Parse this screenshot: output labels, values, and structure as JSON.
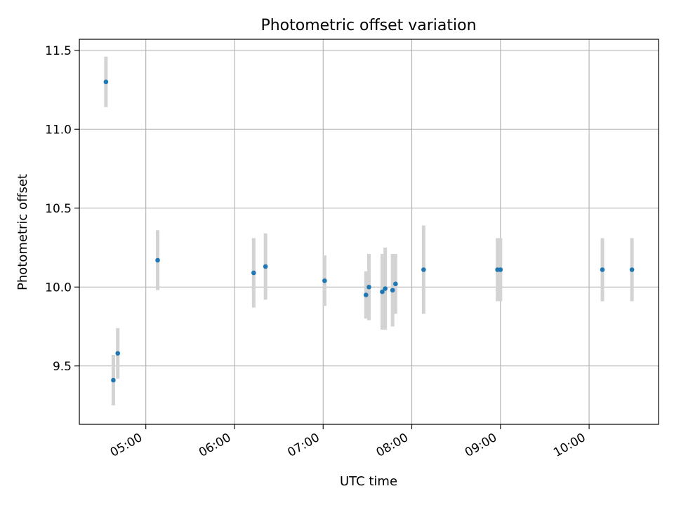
{
  "chart_data": {
    "type": "scatter",
    "title": "Photometric offset variation",
    "xlabel": "UTC time",
    "ylabel": "Photometric offset",
    "x_unit": "time of day (HH:MM, UTC)",
    "xlim": [
      "04:15",
      "10:47"
    ],
    "ylim": [
      9.13,
      11.57
    ],
    "x_ticks": [
      "05:00",
      "06:00",
      "07:00",
      "08:00",
      "09:00",
      "10:00"
    ],
    "y_ticks": [
      9.5,
      10.0,
      10.5,
      11.0,
      11.5
    ],
    "y_tick_labels": [
      "9.5",
      "10.0",
      "10.5",
      "11.0",
      "11.5"
    ],
    "grid": true,
    "legend": "none",
    "point_color": "#1f77b4",
    "errorbar_color": "#d3d3d3",
    "points": [
      {
        "x": "04:33",
        "y": 11.3,
        "err": 0.16
      },
      {
        "x": "04:38",
        "y": 9.41,
        "err": 0.16
      },
      {
        "x": "04:41",
        "y": 9.58,
        "err": 0.16
      },
      {
        "x": "05:08",
        "y": 10.17,
        "err": 0.19
      },
      {
        "x": "06:13",
        "y": 10.09,
        "err": 0.22
      },
      {
        "x": "06:21",
        "y": 10.13,
        "err": 0.21
      },
      {
        "x": "07:01",
        "y": 10.04,
        "err": 0.16
      },
      {
        "x": "07:29",
        "y": 9.95,
        "err": 0.15
      },
      {
        "x": "07:31",
        "y": 10.0,
        "err": 0.21
      },
      {
        "x": "07:40",
        "y": 9.97,
        "err": 0.24
      },
      {
        "x": "07:42",
        "y": 9.99,
        "err": 0.26
      },
      {
        "x": "07:47",
        "y": 9.98,
        "err": 0.23
      },
      {
        "x": "07:49",
        "y": 10.02,
        "err": 0.19
      },
      {
        "x": "08:08",
        "y": 10.11,
        "err": 0.28
      },
      {
        "x": "08:58",
        "y": 10.11,
        "err": 0.2
      },
      {
        "x": "09:00",
        "y": 10.11,
        "err": 0.2
      },
      {
        "x": "10:09",
        "y": 10.11,
        "err": 0.2
      },
      {
        "x": "10:29",
        "y": 10.11,
        "err": 0.2
      }
    ]
  }
}
